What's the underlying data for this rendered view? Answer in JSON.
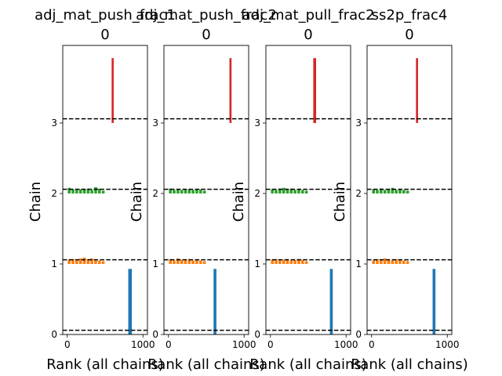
{
  "chart_data": [
    {
      "type": "rank",
      "title": "adj_mat_push_frac1\n0",
      "xlabel": "Rank (all chains)",
      "ylabel": "Chain",
      "xlim": [
        -60,
        1060
      ],
      "ylim": [
        0,
        4.1
      ],
      "x_ticks": [
        0,
        1000
      ],
      "y_ticks": [
        0,
        1,
        2,
        3
      ],
      "reference_lines": [
        0.06,
        1.06,
        2.06,
        3.06
      ],
      "chains": [
        {
          "chain": 0,
          "color": "#1f77b4",
          "bin_edges": [
            800,
            860
          ],
          "heights": [
            0.93
          ]
        },
        {
          "chain": 1,
          "color": "#ff7f0e",
          "bin_edges": [
            0,
            50,
            100,
            150,
            200,
            250,
            300,
            350,
            400,
            450,
            500
          ],
          "heights": [
            0.06,
            0.07,
            0.05,
            0.08,
            0.09,
            0.07,
            0.08,
            0.05,
            0.05,
            0.04
          ]
        },
        {
          "chain": 2,
          "color": "#2ca02c",
          "bin_edges": [
            0,
            50,
            100,
            150,
            200,
            250,
            300,
            350,
            400,
            450,
            500
          ],
          "heights": [
            0.08,
            0.06,
            0.05,
            0.06,
            0.06,
            0.07,
            0.05,
            0.09,
            0.07,
            0.04
          ]
        },
        {
          "chain": 3,
          "color": "#d62728",
          "bin_edges": [
            580,
            620
          ],
          "heights": [
            0.92
          ]
        }
      ]
    },
    {
      "type": "rank",
      "title": "adj_mat_push_frac2\n0",
      "xlabel": "Rank (all chains)",
      "ylabel": "Chain",
      "xlim": [
        -60,
        1060
      ],
      "ylim": [
        0,
        4.1
      ],
      "x_ticks": [
        0,
        1000
      ],
      "y_ticks": [
        0,
        1,
        2,
        3
      ],
      "reference_lines": [
        0.06,
        1.06,
        2.06,
        3.06
      ],
      "chains": [
        {
          "chain": 0,
          "color": "#1f77b4",
          "bin_edges": [
            590,
            640
          ],
          "heights": [
            0.93
          ]
        },
        {
          "chain": 1,
          "color": "#ff7f0e",
          "bin_edges": [
            0,
            50,
            100,
            150,
            200,
            250,
            300,
            350,
            400,
            450,
            500
          ],
          "heights": [
            0.07,
            0.05,
            0.08,
            0.06,
            0.05,
            0.07,
            0.05,
            0.06,
            0.05,
            0.04
          ]
        },
        {
          "chain": 2,
          "color": "#2ca02c",
          "bin_edges": [
            0,
            50,
            100,
            150,
            200,
            250,
            300,
            350,
            400,
            450,
            500
          ],
          "heights": [
            0.07,
            0.05,
            0.06,
            0.05,
            0.06,
            0.06,
            0.05,
            0.06,
            0.06,
            0.04
          ]
        },
        {
          "chain": 3,
          "color": "#d62728",
          "bin_edges": [
            800,
            840
          ],
          "heights": [
            0.92
          ]
        }
      ]
    },
    {
      "type": "rank",
      "title": "adj_mat_pull_frac2\n0",
      "xlabel": "Rank (all chains)",
      "ylabel": "Chain",
      "xlim": [
        -60,
        1060
      ],
      "ylim": [
        0,
        4.1
      ],
      "x_ticks": [
        0,
        1000
      ],
      "y_ticks": [
        0,
        1,
        2,
        3
      ],
      "reference_lines": [
        0.06,
        1.06,
        2.06,
        3.06
      ],
      "chains": [
        {
          "chain": 0,
          "color": "#1f77b4",
          "bin_edges": [
            780,
            830
          ],
          "heights": [
            0.93
          ]
        },
        {
          "chain": 1,
          "color": "#ff7f0e",
          "bin_edges": [
            0,
            50,
            100,
            150,
            200,
            250,
            300,
            350,
            400,
            450,
            500
          ],
          "heights": [
            0.06,
            0.07,
            0.05,
            0.06,
            0.07,
            0.05,
            0.06,
            0.07,
            0.06,
            0.04
          ]
        },
        {
          "chain": 2,
          "color": "#2ca02c",
          "bin_edges": [
            0,
            50,
            100,
            150,
            200,
            250,
            300,
            350,
            400,
            450,
            500
          ],
          "heights": [
            0.06,
            0.05,
            0.07,
            0.08,
            0.06,
            0.07,
            0.05,
            0.06,
            0.05,
            0.04
          ]
        },
        {
          "chain": 3,
          "color": "#d62728",
          "bin_edges": [
            560,
            610
          ],
          "heights": [
            0.92
          ]
        }
      ]
    },
    {
      "type": "rank",
      "title": "ss2p_frac4\n0",
      "xlabel": "Rank (all chains)",
      "ylabel": "Chain",
      "xlim": [
        -60,
        1060
      ],
      "ylim": [
        0,
        4.1
      ],
      "x_ticks": [
        0,
        1000
      ],
      "y_ticks": [
        0,
        1,
        2,
        3
      ],
      "reference_lines": [
        0.06,
        1.06,
        2.06,
        3.06
      ],
      "chains": [
        {
          "chain": 0,
          "color": "#1f77b4",
          "bin_edges": [
            800,
            850
          ],
          "heights": [
            0.93
          ]
        },
        {
          "chain": 1,
          "color": "#ff7f0e",
          "bin_edges": [
            0,
            50,
            100,
            150,
            200,
            250,
            300,
            350,
            400,
            450,
            500
          ],
          "heights": [
            0.05,
            0.07,
            0.06,
            0.08,
            0.06,
            0.05,
            0.07,
            0.06,
            0.05,
            0.04
          ]
        },
        {
          "chain": 2,
          "color": "#2ca02c",
          "bin_edges": [
            0,
            50,
            100,
            150,
            200,
            250,
            300,
            350,
            400,
            450,
            500
          ],
          "heights": [
            0.06,
            0.05,
            0.07,
            0.05,
            0.06,
            0.08,
            0.05,
            0.06,
            0.05,
            0.04
          ]
        },
        {
          "chain": 3,
          "color": "#d62728",
          "bin_edges": [
            580,
            620
          ],
          "heights": [
            0.92
          ]
        }
      ]
    }
  ]
}
